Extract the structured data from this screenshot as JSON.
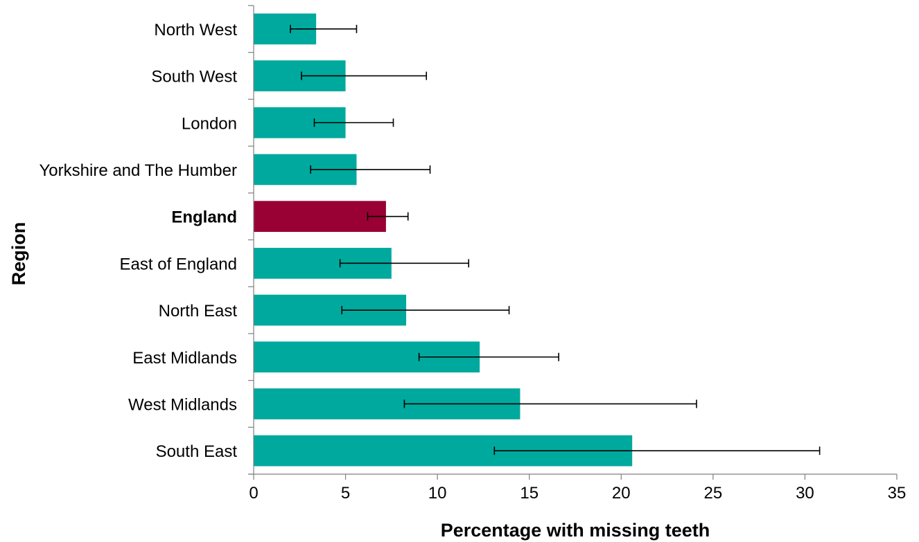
{
  "chart_data": {
    "type": "bar",
    "orientation": "horizontal",
    "title": "",
    "xlabel": "Percentage with missing teeth",
    "ylabel": "Region",
    "xlim": [
      0,
      35
    ],
    "xticks": [
      0,
      5,
      10,
      15,
      20,
      25,
      30,
      35
    ],
    "grid": false,
    "legend": "none",
    "highlight_category": "England",
    "colors": {
      "default": "#00A99D",
      "highlight": "#990033",
      "axis": "#7f7f7f",
      "error": "#000000"
    },
    "categories": [
      "North West",
      "South West",
      "London",
      "Yorkshire and The Humber",
      "England",
      "East of England",
      "North East",
      "East Midlands",
      "West Midlands",
      "South East"
    ],
    "values": [
      3.4,
      5.0,
      5.0,
      5.6,
      7.2,
      7.5,
      8.3,
      12.3,
      14.5,
      20.6
    ],
    "error_low": [
      2.0,
      2.6,
      3.3,
      3.1,
      6.2,
      4.7,
      4.8,
      9.0,
      8.2,
      13.1
    ],
    "error_high": [
      5.6,
      9.4,
      7.6,
      9.6,
      8.4,
      11.7,
      13.9,
      16.6,
      24.1,
      30.8
    ]
  }
}
